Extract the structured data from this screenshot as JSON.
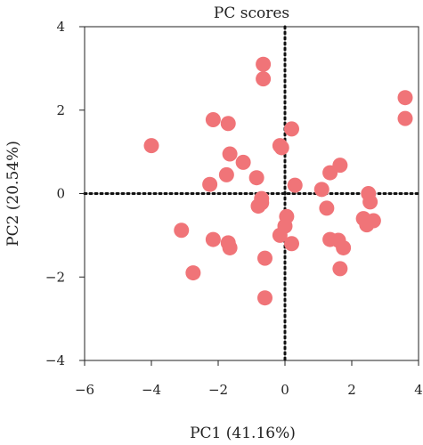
{
  "chart_data": {
    "type": "scatter",
    "title": "PC scores",
    "xlabel": "PC1 (41.16%)",
    "ylabel": "PC2 (20.54%)",
    "xlim": [
      -6,
      4
    ],
    "ylim": [
      -4,
      4
    ],
    "xticks": [
      -6,
      -4,
      -2,
      0,
      2,
      4
    ],
    "yticks": [
      -4,
      -2,
      0,
      2,
      4
    ],
    "xtick_labels": [
      "−6",
      "−4",
      "−2",
      "0",
      "2",
      "4"
    ],
    "ytick_labels": [
      "−4",
      "−2",
      "0",
      "2",
      "4"
    ],
    "grid": false,
    "reference_lines": {
      "x": 0,
      "y": 0,
      "style": "dotted"
    },
    "point_color": "#f07478",
    "points": [
      {
        "x": -4.0,
        "y": 1.15
      },
      {
        "x": -3.1,
        "y": -0.88
      },
      {
        "x": -2.75,
        "y": -1.9
      },
      {
        "x": -2.25,
        "y": 0.22
      },
      {
        "x": -2.15,
        "y": 1.77
      },
      {
        "x": -2.15,
        "y": -1.1
      },
      {
        "x": -1.75,
        "y": 0.45
      },
      {
        "x": -1.7,
        "y": 1.68
      },
      {
        "x": -1.65,
        "y": 0.95
      },
      {
        "x": -1.7,
        "y": -1.18
      },
      {
        "x": -1.65,
        "y": -1.3
      },
      {
        "x": -1.25,
        "y": 0.75
      },
      {
        "x": -0.85,
        "y": 0.38
      },
      {
        "x": -0.8,
        "y": -0.3
      },
      {
        "x": -0.7,
        "y": -0.22
      },
      {
        "x": -0.7,
        "y": -0.12
      },
      {
        "x": -0.65,
        "y": 3.1
      },
      {
        "x": -0.65,
        "y": 2.75
      },
      {
        "x": -0.6,
        "y": -1.55
      },
      {
        "x": -0.6,
        "y": -2.5
      },
      {
        "x": -0.15,
        "y": 1.15
      },
      {
        "x": -0.1,
        "y": 1.1
      },
      {
        "x": -0.15,
        "y": -1.0
      },
      {
        "x": 0.0,
        "y": -0.78
      },
      {
        "x": 0.05,
        "y": -0.55
      },
      {
        "x": 0.2,
        "y": 1.55
      },
      {
        "x": 0.3,
        "y": 0.2
      },
      {
        "x": 0.2,
        "y": -1.2
      },
      {
        "x": 1.1,
        "y": 0.1
      },
      {
        "x": 1.35,
        "y": 0.5
      },
      {
        "x": 1.65,
        "y": 0.68
      },
      {
        "x": 1.25,
        "y": -0.35
      },
      {
        "x": 1.35,
        "y": -1.1
      },
      {
        "x": 1.6,
        "y": -1.12
      },
      {
        "x": 1.75,
        "y": -1.3
      },
      {
        "x": 1.65,
        "y": -1.8
      },
      {
        "x": 2.5,
        "y": 0.0
      },
      {
        "x": 2.55,
        "y": -0.2
      },
      {
        "x": 2.35,
        "y": -0.6
      },
      {
        "x": 2.45,
        "y": -0.75
      },
      {
        "x": 2.65,
        "y": -0.65
      },
      {
        "x": 3.6,
        "y": 2.3
      },
      {
        "x": 3.6,
        "y": 1.8
      }
    ]
  }
}
